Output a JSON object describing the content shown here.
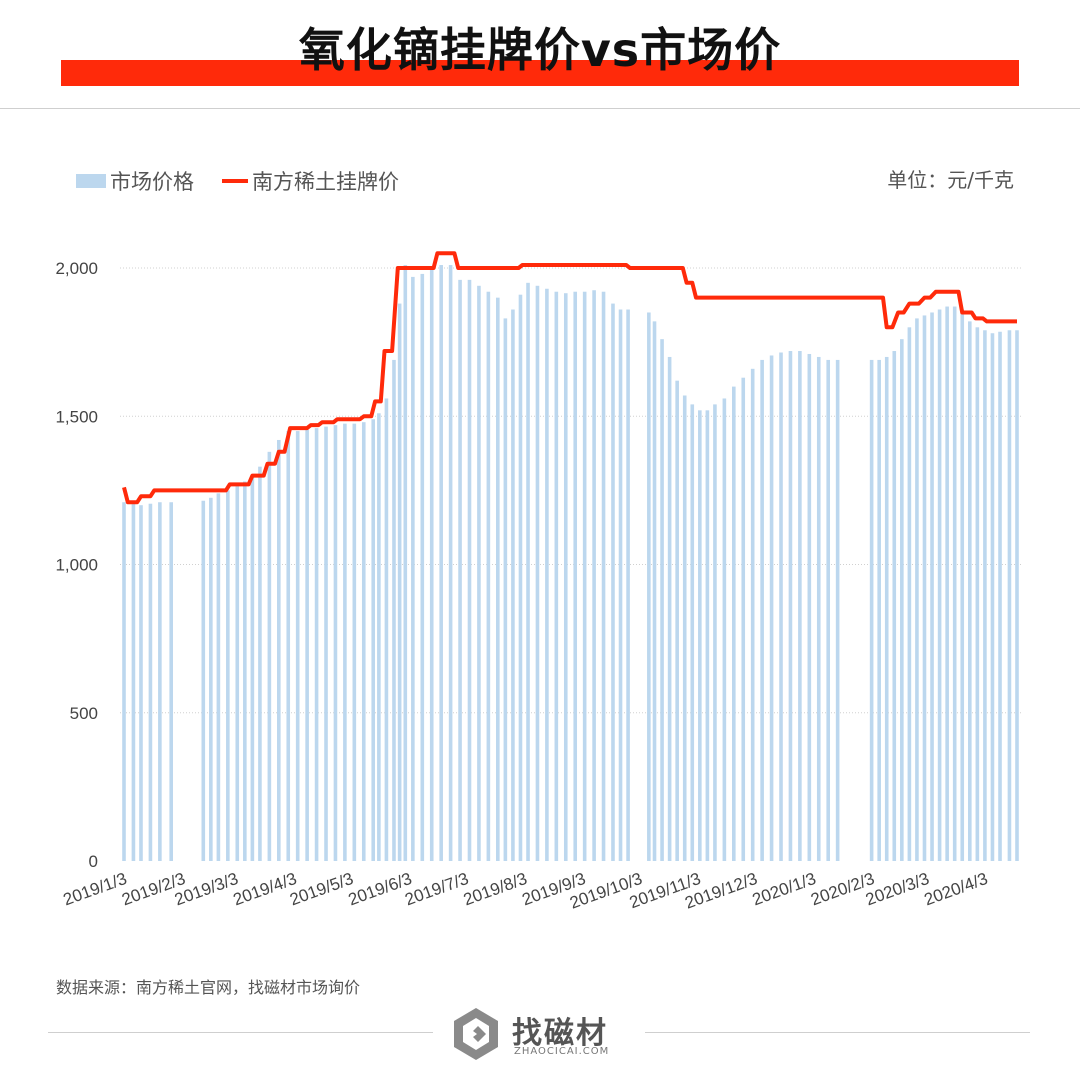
{
  "header": {
    "title": "氧化镝挂牌价vs市场价"
  },
  "unit_label": "单位：元/千克",
  "source": "数据来源：南方稀土官网，找磁材市场询价",
  "logo": {
    "name": "找磁材",
    "url": "ZHAOCICAI.COM"
  },
  "colors": {
    "bar": "#bcd7ee",
    "line": "#ff2a0a",
    "accent": "#ff2a0a"
  },
  "chart_data": {
    "type": "bar+line",
    "ylim": [
      0,
      2000
    ],
    "yticks": [
      0,
      500,
      1000,
      1500,
      2000
    ],
    "ytick_labels": [
      "0",
      "500",
      "1,000",
      "1,500",
      "2,000"
    ],
    "xticks": [
      "2019/1/3",
      "2019/2/3",
      "2019/3/3",
      "2019/4/3",
      "2019/5/3",
      "2019/6/3",
      "2019/7/3",
      "2019/8/3",
      "2019/9/3",
      "2019/10/3",
      "2019/11/3",
      "2019/12/3",
      "2020/1/3",
      "2020/2/3",
      "2020/3/3",
      "2020/4/3"
    ],
    "xrange": [
      "2019-01-03",
      "2020-04-20"
    ],
    "grid": true,
    "legend": "top-left",
    "series": [
      {
        "name": "市场价格",
        "type": "bar",
        "points": [
          [
            "2019-01-03",
            1210
          ],
          [
            "2019-01-08",
            1210
          ],
          [
            "2019-01-12",
            1200
          ],
          [
            "2019-01-17",
            1205
          ],
          [
            "2019-01-22",
            1210
          ],
          [
            "2019-01-28",
            1210
          ],
          [
            "2019-02-14",
            1215
          ],
          [
            "2019-02-18",
            1225
          ],
          [
            "2019-02-22",
            1240
          ],
          [
            "2019-02-27",
            1250
          ],
          [
            "2019-03-04",
            1265
          ],
          [
            "2019-03-08",
            1280
          ],
          [
            "2019-03-12",
            1300
          ],
          [
            "2019-03-16",
            1330
          ],
          [
            "2019-03-21",
            1380
          ],
          [
            "2019-03-26",
            1420
          ],
          [
            "2019-03-31",
            1450
          ],
          [
            "2019-04-05",
            1450
          ],
          [
            "2019-04-10",
            1455
          ],
          [
            "2019-04-15",
            1460
          ],
          [
            "2019-04-20",
            1465
          ],
          [
            "2019-04-25",
            1470
          ],
          [
            "2019-04-30",
            1475
          ],
          [
            "2019-05-05",
            1475
          ],
          [
            "2019-05-10",
            1480
          ],
          [
            "2019-05-15",
            1490
          ],
          [
            "2019-05-18",
            1510
          ],
          [
            "2019-05-22",
            1560
          ],
          [
            "2019-05-26",
            1690
          ],
          [
            "2019-05-29",
            1880
          ],
          [
            "2019-06-01",
            2010
          ],
          [
            "2019-06-05",
            1970
          ],
          [
            "2019-06-10",
            1980
          ],
          [
            "2019-06-15",
            2000
          ],
          [
            "2019-06-20",
            2010
          ],
          [
            "2019-06-25",
            2010
          ],
          [
            "2019-06-30",
            1960
          ],
          [
            "2019-07-05",
            1960
          ],
          [
            "2019-07-10",
            1940
          ],
          [
            "2019-07-15",
            1920
          ],
          [
            "2019-07-20",
            1900
          ],
          [
            "2019-07-24",
            1830
          ],
          [
            "2019-07-28",
            1860
          ],
          [
            "2019-08-01",
            1910
          ],
          [
            "2019-08-05",
            1950
          ],
          [
            "2019-08-10",
            1940
          ],
          [
            "2019-08-15",
            1930
          ],
          [
            "2019-08-20",
            1920
          ],
          [
            "2019-08-25",
            1915
          ],
          [
            "2019-08-30",
            1920
          ],
          [
            "2019-09-04",
            1920
          ],
          [
            "2019-09-09",
            1925
          ],
          [
            "2019-09-14",
            1920
          ],
          [
            "2019-09-19",
            1880
          ],
          [
            "2019-09-23",
            1860
          ],
          [
            "2019-09-27",
            1860
          ],
          [
            "2019-10-08",
            1850
          ],
          [
            "2019-10-11",
            1820
          ],
          [
            "2019-10-15",
            1760
          ],
          [
            "2019-10-19",
            1700
          ],
          [
            "2019-10-23",
            1620
          ],
          [
            "2019-10-27",
            1570
          ],
          [
            "2019-10-31",
            1540
          ],
          [
            "2019-11-04",
            1520
          ],
          [
            "2019-11-08",
            1520
          ],
          [
            "2019-11-12",
            1540
          ],
          [
            "2019-11-17",
            1560
          ],
          [
            "2019-11-22",
            1600
          ],
          [
            "2019-11-27",
            1630
          ],
          [
            "2019-12-02",
            1660
          ],
          [
            "2019-12-07",
            1690
          ],
          [
            "2019-12-12",
            1705
          ],
          [
            "2019-12-17",
            1715
          ],
          [
            "2019-12-22",
            1720
          ],
          [
            "2019-12-27",
            1720
          ],
          [
            "2020-01-01",
            1710
          ],
          [
            "2020-01-06",
            1700
          ],
          [
            "2020-01-11",
            1690
          ],
          [
            "2020-01-16",
            1690
          ],
          [
            "2020-02-03",
            1690
          ],
          [
            "2020-02-07",
            1690
          ],
          [
            "2020-02-11",
            1700
          ],
          [
            "2020-02-15",
            1720
          ],
          [
            "2020-02-19",
            1760
          ],
          [
            "2020-02-23",
            1800
          ],
          [
            "2020-02-27",
            1830
          ],
          [
            "2020-03-02",
            1840
          ],
          [
            "2020-03-06",
            1850
          ],
          [
            "2020-03-10",
            1860
          ],
          [
            "2020-03-14",
            1870
          ],
          [
            "2020-03-18",
            1870
          ],
          [
            "2020-03-22",
            1860
          ],
          [
            "2020-03-26",
            1820
          ],
          [
            "2020-03-30",
            1800
          ],
          [
            "2020-04-03",
            1790
          ],
          [
            "2020-04-07",
            1780
          ],
          [
            "2020-04-11",
            1785
          ],
          [
            "2020-04-16",
            1790
          ],
          [
            "2020-04-20",
            1790
          ]
        ]
      },
      {
        "name": "南方稀土挂牌价",
        "type": "line",
        "points": [
          [
            "2019-01-03",
            1260
          ],
          [
            "2019-01-05",
            1210
          ],
          [
            "2019-01-10",
            1210
          ],
          [
            "2019-01-12",
            1230
          ],
          [
            "2019-01-17",
            1230
          ],
          [
            "2019-01-19",
            1250
          ],
          [
            "2019-02-26",
            1250
          ],
          [
            "2019-02-28",
            1270
          ],
          [
            "2019-03-10",
            1270
          ],
          [
            "2019-03-12",
            1300
          ],
          [
            "2019-03-18",
            1300
          ],
          [
            "2019-03-20",
            1340
          ],
          [
            "2019-03-24",
            1340
          ],
          [
            "2019-03-26",
            1380
          ],
          [
            "2019-03-29",
            1380
          ],
          [
            "2019-04-01",
            1460
          ],
          [
            "2019-04-10",
            1460
          ],
          [
            "2019-04-12",
            1470
          ],
          [
            "2019-04-16",
            1470
          ],
          [
            "2019-04-18",
            1480
          ],
          [
            "2019-04-24",
            1480
          ],
          [
            "2019-04-26",
            1490
          ],
          [
            "2019-05-08",
            1490
          ],
          [
            "2019-05-10",
            1500
          ],
          [
            "2019-05-14",
            1500
          ],
          [
            "2019-05-16",
            1550
          ],
          [
            "2019-05-19",
            1550
          ],
          [
            "2019-05-21",
            1720
          ],
          [
            "2019-05-25",
            1720
          ],
          [
            "2019-05-28",
            2000
          ],
          [
            "2019-06-16",
            2000
          ],
          [
            "2019-06-18",
            2050
          ],
          [
            "2019-06-27",
            2050
          ],
          [
            "2019-06-29",
            2000
          ],
          [
            "2019-07-31",
            2000
          ],
          [
            "2019-08-02",
            2010
          ],
          [
            "2019-09-26",
            2010
          ],
          [
            "2019-09-28",
            2000
          ],
          [
            "2019-10-26",
            2000
          ],
          [
            "2019-10-28",
            1950
          ],
          [
            "2019-10-31",
            1950
          ],
          [
            "2019-11-02",
            1900
          ],
          [
            "2020-02-09",
            1900
          ],
          [
            "2020-02-11",
            1800
          ],
          [
            "2020-02-14",
            1800
          ],
          [
            "2020-02-17",
            1850
          ],
          [
            "2020-02-20",
            1850
          ],
          [
            "2020-02-23",
            1880
          ],
          [
            "2020-02-28",
            1880
          ],
          [
            "2020-03-02",
            1900
          ],
          [
            "2020-03-05",
            1900
          ],
          [
            "2020-03-08",
            1920
          ],
          [
            "2020-03-20",
            1920
          ],
          [
            "2020-03-22",
            1850
          ],
          [
            "2020-03-27",
            1850
          ],
          [
            "2020-03-29",
            1830
          ],
          [
            "2020-04-02",
            1830
          ],
          [
            "2020-04-04",
            1820
          ],
          [
            "2020-04-20",
            1820
          ]
        ]
      }
    ]
  }
}
